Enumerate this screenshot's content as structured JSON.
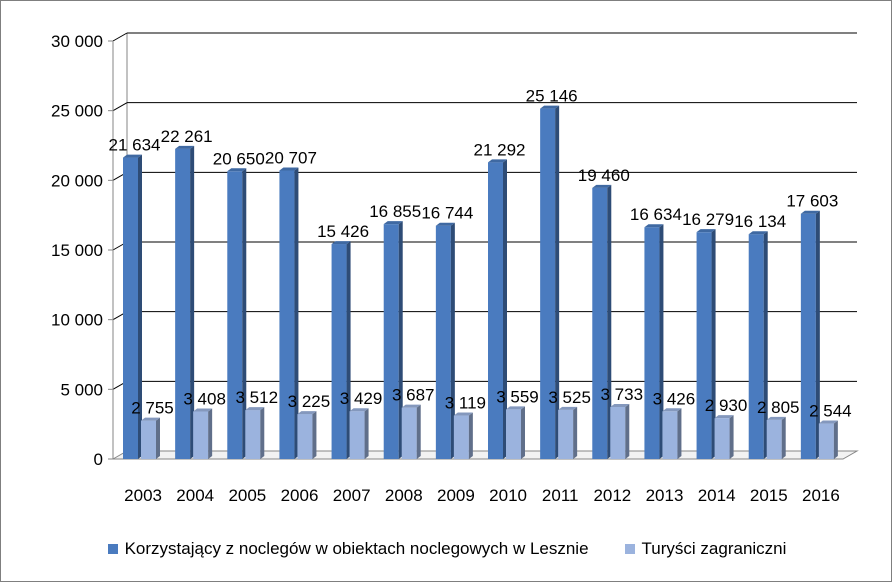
{
  "chart_data": {
    "type": "bar",
    "title": "",
    "xlabel": "",
    "ylabel": "",
    "ylim": [
      0,
      30000
    ],
    "yticks": [
      0,
      5000,
      10000,
      15000,
      20000,
      25000,
      30000
    ],
    "ytick_labels": [
      "0",
      "5 000",
      "10 000",
      "15 000",
      "20 000",
      "25 000",
      "30 000"
    ],
    "categories": [
      "2003",
      "2004",
      "2005",
      "2006",
      "2007",
      "2008",
      "2009",
      "2010",
      "2011",
      "2012",
      "2013",
      "2014",
      "2015",
      "2016"
    ],
    "grid": true,
    "legend_position": "bottom",
    "series": [
      {
        "name": "Korzystający z noclegów w obiektach noclegowych w Lesznie",
        "color": "#4a7bbf",
        "values": [
          21634,
          22261,
          20650,
          20707,
          15426,
          16855,
          16744,
          21292,
          25146,
          19460,
          16634,
          16279,
          16134,
          17603
        ],
        "labels": [
          "21 634",
          "22 261",
          "20 650",
          "20 707",
          "15 426",
          "16 855",
          "16 744",
          "21 292",
          "25 146",
          "19 460",
          "16 634",
          "16 279",
          "16 134",
          "17 603"
        ]
      },
      {
        "name": "Turyści zagraniczni",
        "color": "#9bb3de",
        "values": [
          2755,
          3408,
          3512,
          3225,
          3429,
          3687,
          3119,
          3559,
          3525,
          3733,
          3426,
          2930,
          2805,
          2544
        ],
        "labels": [
          "2 755",
          "3 408",
          "3 512",
          "3 225",
          "3 429",
          "3 687",
          "3 119",
          "3 559",
          "3 525",
          "3 733",
          "3 426",
          "2 930",
          "2 805",
          "2 544"
        ]
      }
    ]
  }
}
